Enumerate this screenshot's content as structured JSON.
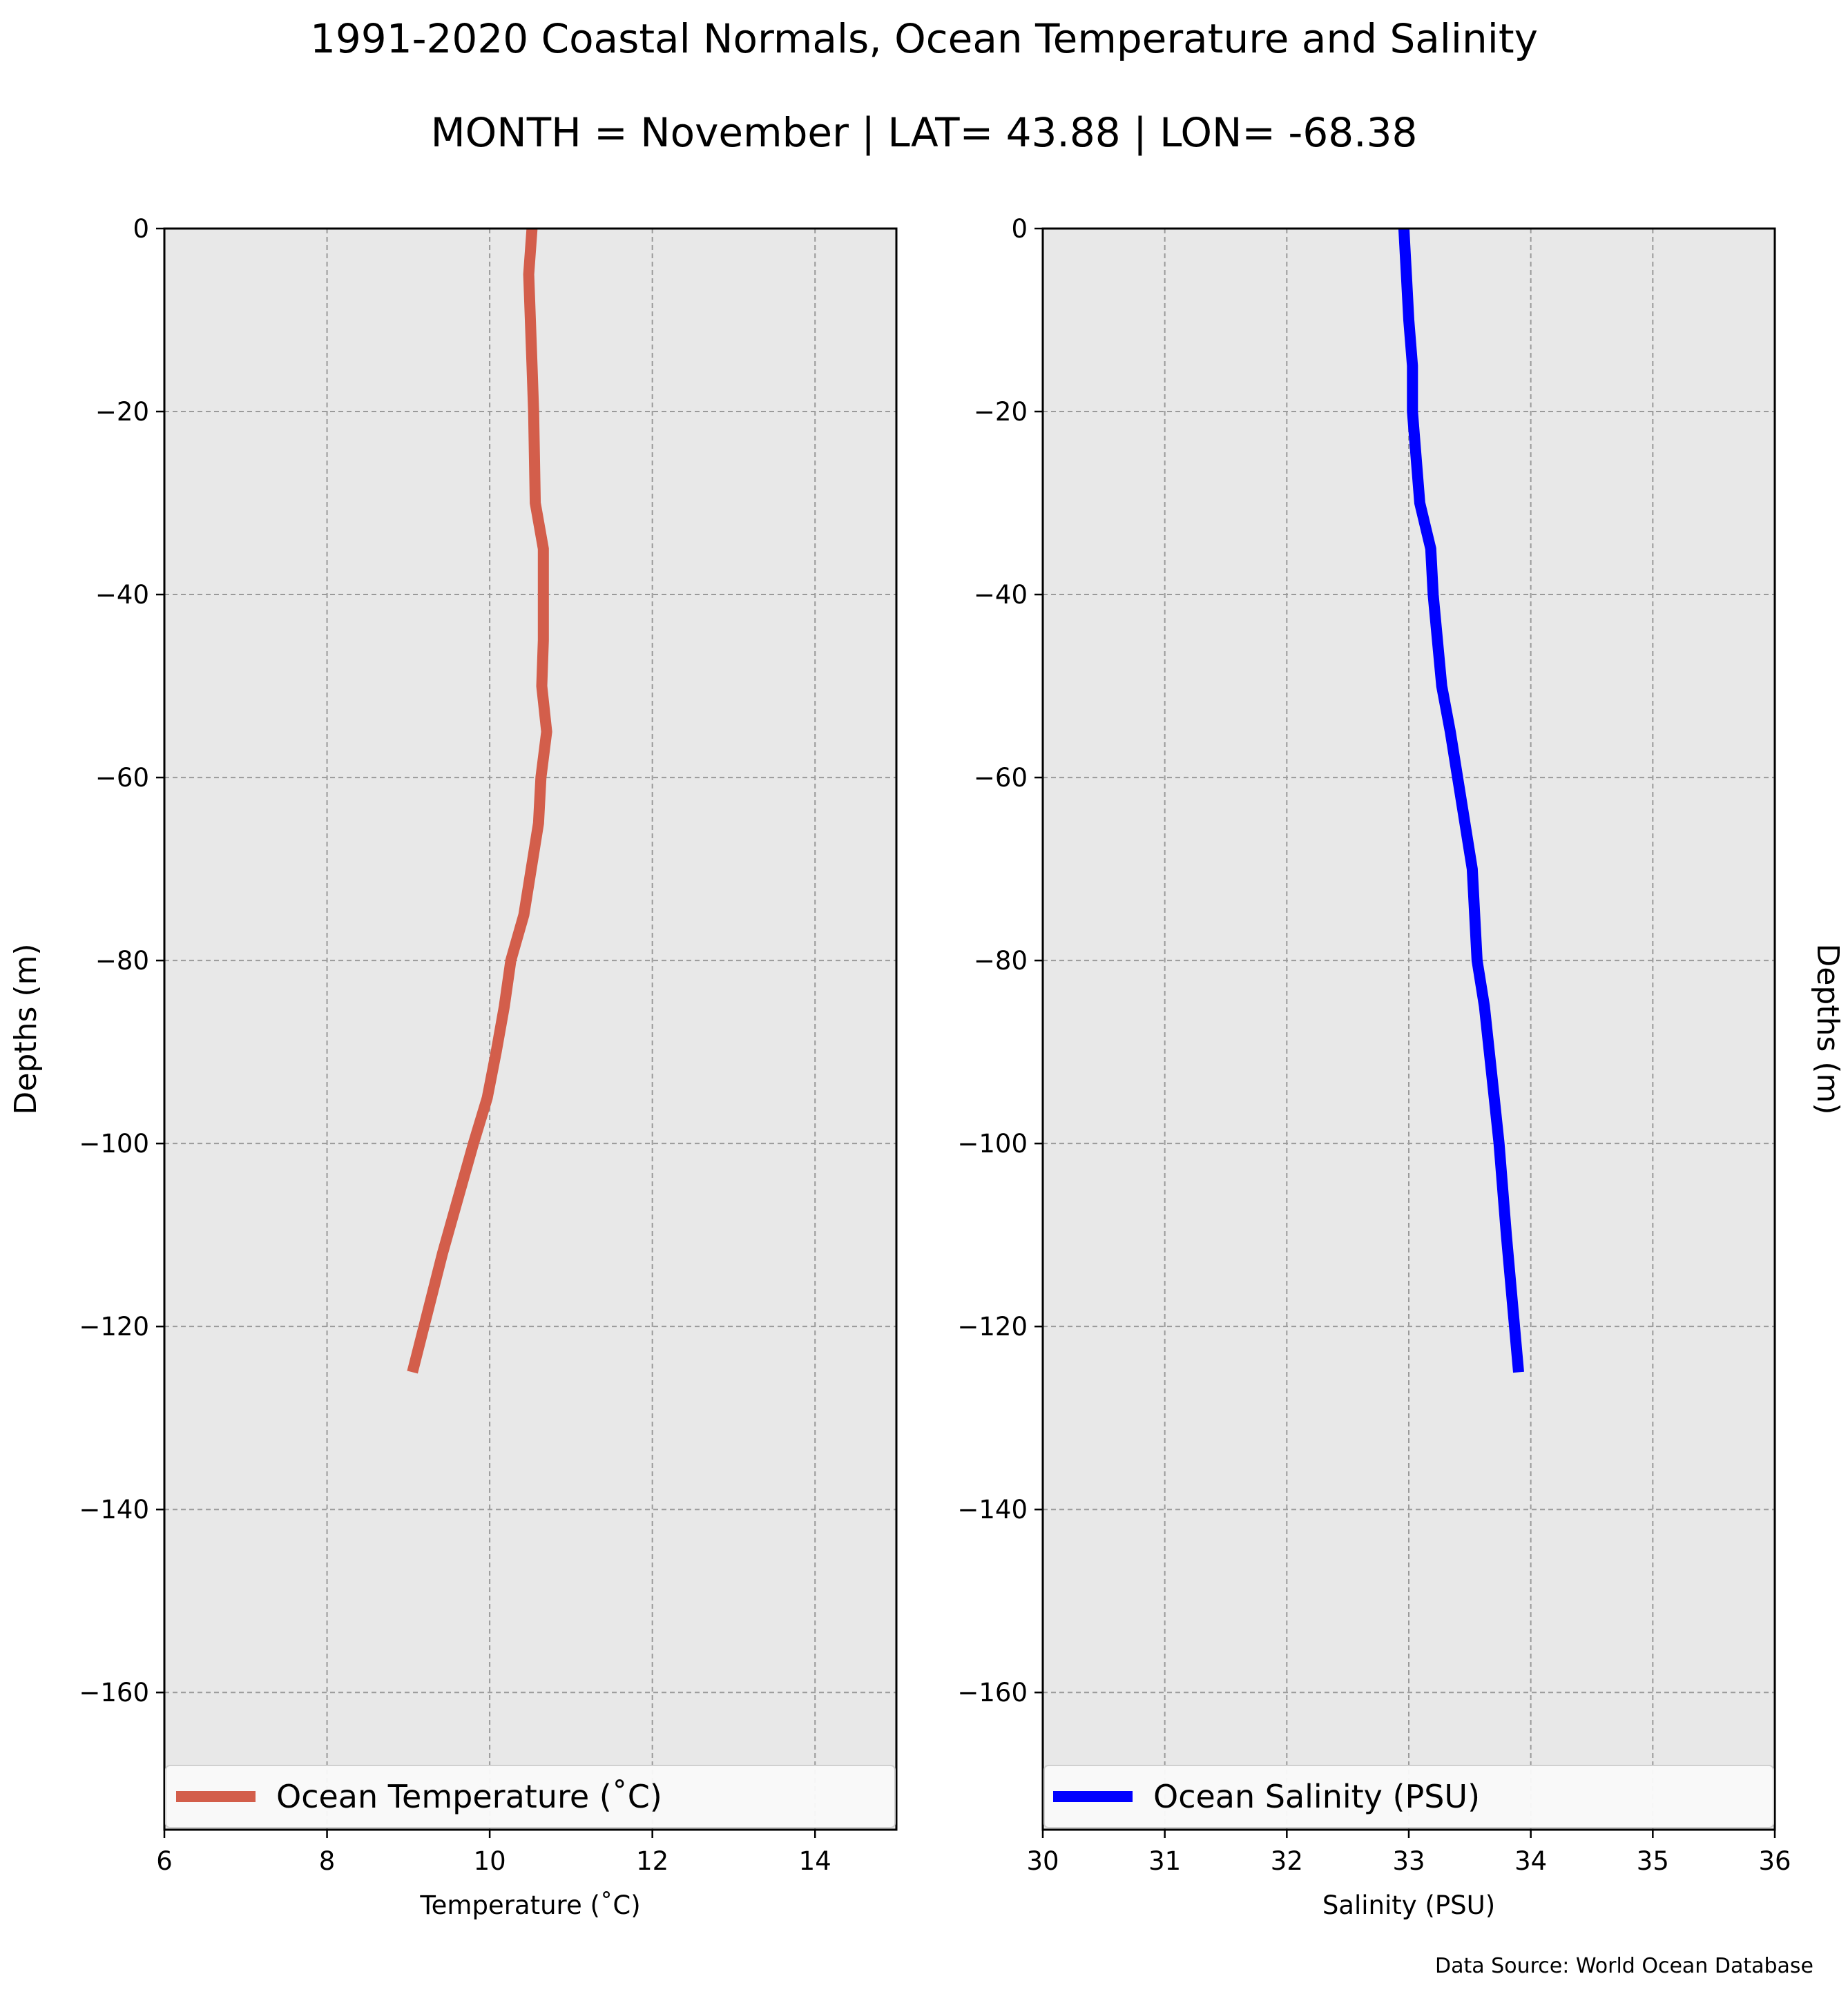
{
  "title": "1991-2020 Coastal Normals, Ocean Temperature and Salinity",
  "subtitle": "MONTH = November | LAT= 43.88 | LON= -68.38",
  "footer": "Data Source: World Ocean Database",
  "chart_data": [
    {
      "type": "line",
      "xlabel": "Temperature (˚C)",
      "ylabel": "Depths (m)",
      "xlim": [
        6,
        15
      ],
      "ylim": [
        -175,
        0
      ],
      "xticks": [
        6,
        8,
        10,
        12,
        14
      ],
      "xtick_labels": [
        "6",
        "8",
        "10",
        "12",
        "14"
      ],
      "yticks": [
        0,
        -20,
        -40,
        -60,
        -80,
        -100,
        -120,
        -140,
        -160
      ],
      "ytick_labels": [
        "0",
        "−20",
        "−40",
        "−60",
        "−80",
        "−100",
        "−120",
        "−140",
        "−160"
      ],
      "grid": true,
      "legend_position": "lower-center",
      "series": [
        {
          "name": "Ocean Temperature (˚C)",
          "color": "#d35e4b",
          "x": [
            10.52,
            10.48,
            10.5,
            10.52,
            10.54,
            10.55,
            10.56,
            10.66,
            10.66,
            10.64,
            10.7,
            10.63,
            10.6,
            10.42,
            10.26,
            10.18,
            10.08,
            9.97,
            9.8,
            9.42,
            9.05
          ],
          "y": [
            0,
            -5,
            -10,
            -15,
            -20,
            -25,
            -30,
            -35,
            -45,
            -50,
            -55,
            -60,
            -65,
            -75,
            -80,
            -85,
            -90,
            -95,
            -100,
            -112,
            -125
          ]
        }
      ]
    },
    {
      "type": "line",
      "xlabel": "Salinity (PSU)",
      "ylabel": "Depths (m)",
      "xlim": [
        30,
        36
      ],
      "ylim": [
        -175,
        0
      ],
      "xticks": [
        30,
        31,
        32,
        33,
        34,
        35,
        36
      ],
      "xtick_labels": [
        "30",
        "31",
        "32",
        "33",
        "34",
        "35",
        "36"
      ],
      "yticks": [
        0,
        -20,
        -40,
        -60,
        -80,
        -100,
        -120,
        -140,
        -160
      ],
      "ytick_labels": [
        "0",
        "−20",
        "−40",
        "−60",
        "−80",
        "−100",
        "−120",
        "−140",
        "−160"
      ],
      "grid": true,
      "legend_position": "lower-center",
      "series": [
        {
          "name": "Ocean Salinity (PSU)",
          "color": "#0000ff",
          "x": [
            32.96,
            32.98,
            33.0,
            33.03,
            33.03,
            33.06,
            33.09,
            33.18,
            33.2,
            33.27,
            33.34,
            33.4,
            33.46,
            33.52,
            33.56,
            33.62,
            33.66,
            33.7,
            33.74,
            33.8,
            33.9
          ],
          "y": [
            0,
            -5,
            -10,
            -15,
            -20,
            -25,
            -30,
            -35,
            -40,
            -50,
            -55,
            -60,
            -65,
            -70,
            -80,
            -85,
            -90,
            -95,
            -100,
            -110,
            -125
          ]
        }
      ]
    }
  ]
}
